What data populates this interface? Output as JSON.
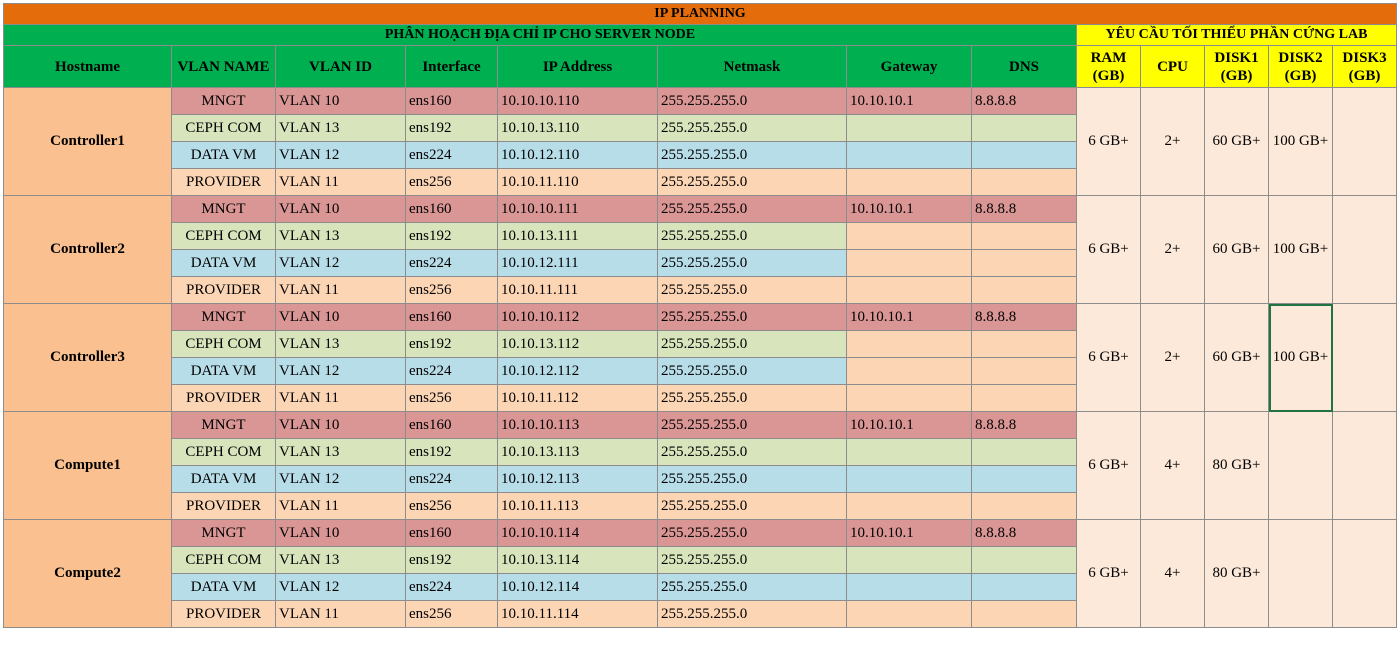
{
  "title": "IP PLANNING",
  "section_ip": "PHÂN HOẠCH ĐỊA CHỈ IP CHO SERVER NODE",
  "section_hw": "YÊU CẦU TỐI THIỂU PHẦN CỨNG LAB",
  "headers": {
    "hostname": "Hostname",
    "vlan_name": "VLAN NAME",
    "vlan_id": "VLAN ID",
    "interface": "Interface",
    "ip": "IP Address",
    "netmask": "Netmask",
    "gateway": "Gateway",
    "dns": "DNS",
    "ram": "RAM (GB)",
    "cpu": "CPU",
    "disk1": "DISK1 (GB)",
    "disk2": "DISK2 (GB)",
    "disk3": "DISK3 (GB)"
  },
  "hosts": [
    {
      "name": "Controller1",
      "ram": "6 GB+",
      "cpu": "2+",
      "disk1": "60 GB+",
      "disk2": "100 GB+",
      "disk3": "",
      "rows": [
        {
          "vlan_name": "MNGT",
          "vlan_id": "VLAN 10",
          "iface": "ens160",
          "ip": "10.10.10.110",
          "mask": "255.255.255.0",
          "gw": "10.10.10.1",
          "dns": "8.8.8.8"
        },
        {
          "vlan_name": "CEPH COM",
          "vlan_id": "VLAN 13",
          "iface": "ens192",
          "ip": "10.10.13.110",
          "mask": "255.255.255.0",
          "gw": "",
          "dns": ""
        },
        {
          "vlan_name": "DATA VM",
          "vlan_id": "VLAN 12",
          "iface": "ens224",
          "ip": "10.10.12.110",
          "mask": "255.255.255.0",
          "gw": "",
          "dns": ""
        },
        {
          "vlan_name": "PROVIDER",
          "vlan_id": "VLAN 11",
          "iface": "ens256",
          "ip": "10.10.11.110",
          "mask": "255.255.255.0",
          "gw": "",
          "dns": ""
        }
      ]
    },
    {
      "name": "Controller2",
      "ram": "6 GB+",
      "cpu": "2+",
      "disk1": "60 GB+",
      "disk2": "100 GB+",
      "disk3": "",
      "rows": [
        {
          "vlan_name": "MNGT",
          "vlan_id": "VLAN 10",
          "iface": "ens160",
          "ip": "10.10.10.111",
          "mask": "255.255.255.0",
          "gw": "10.10.10.1",
          "dns": "8.8.8.8"
        },
        {
          "vlan_name": "CEPH COM",
          "vlan_id": "VLAN 13",
          "iface": "ens192",
          "ip": "10.10.13.111",
          "mask": "255.255.255.0",
          "gw": "",
          "dns": ""
        },
        {
          "vlan_name": "DATA VM",
          "vlan_id": "VLAN 12",
          "iface": "ens224",
          "ip": "10.10.12.111",
          "mask": "255.255.255.0",
          "gw": "",
          "dns": ""
        },
        {
          "vlan_name": "PROVIDER",
          "vlan_id": "VLAN 11",
          "iface": "ens256",
          "ip": "10.10.11.111",
          "mask": "255.255.255.0",
          "gw": "",
          "dns": ""
        }
      ]
    },
    {
      "name": "Controller3",
      "ram": "6 GB+",
      "cpu": "2+",
      "disk1": "60 GB+",
      "disk2": "100 GB+",
      "disk3": "",
      "rows": [
        {
          "vlan_name": "MNGT",
          "vlan_id": "VLAN 10",
          "iface": "ens160",
          "ip": "10.10.10.112",
          "mask": "255.255.255.0",
          "gw": "10.10.10.1",
          "dns": "8.8.8.8"
        },
        {
          "vlan_name": "CEPH COM",
          "vlan_id": "VLAN 13",
          "iface": "ens192",
          "ip": "10.10.13.112",
          "mask": "255.255.255.0",
          "gw": "",
          "dns": ""
        },
        {
          "vlan_name": "DATA VM",
          "vlan_id": "VLAN 12",
          "iface": "ens224",
          "ip": "10.10.12.112",
          "mask": "255.255.255.0",
          "gw": "",
          "dns": ""
        },
        {
          "vlan_name": "PROVIDER",
          "vlan_id": "VLAN 11",
          "iface": "ens256",
          "ip": "10.10.11.112",
          "mask": "255.255.255.0",
          "gw": "",
          "dns": ""
        }
      ]
    },
    {
      "name": "Compute1",
      "ram": "6 GB+",
      "cpu": "4+",
      "disk1": "80 GB+",
      "disk2": "",
      "disk3": "",
      "rows": [
        {
          "vlan_name": "MNGT",
          "vlan_id": "VLAN 10",
          "iface": "ens160",
          "ip": "10.10.10.113",
          "mask": "255.255.255.0",
          "gw": "10.10.10.1",
          "dns": "8.8.8.8"
        },
        {
          "vlan_name": "CEPH COM",
          "vlan_id": "VLAN 13",
          "iface": "ens192",
          "ip": "10.10.13.113",
          "mask": "255.255.255.0",
          "gw": "",
          "dns": ""
        },
        {
          "vlan_name": "DATA VM",
          "vlan_id": "VLAN 12",
          "iface": "ens224",
          "ip": "10.10.12.113",
          "mask": "255.255.255.0",
          "gw": "",
          "dns": ""
        },
        {
          "vlan_name": "PROVIDER",
          "vlan_id": "VLAN 11",
          "iface": "ens256",
          "ip": "10.10.11.113",
          "mask": "255.255.255.0",
          "gw": "",
          "dns": ""
        }
      ]
    },
    {
      "name": "Compute2",
      "ram": "6 GB+",
      "cpu": "4+",
      "disk1": "80 GB+",
      "disk2": "",
      "disk3": "",
      "rows": [
        {
          "vlan_name": "MNGT",
          "vlan_id": "VLAN 10",
          "iface": "ens160",
          "ip": "10.10.10.114",
          "mask": "255.255.255.0",
          "gw": "10.10.10.1",
          "dns": "8.8.8.8"
        },
        {
          "vlan_name": "CEPH COM",
          "vlan_id": "VLAN 13",
          "iface": "ens192",
          "ip": "10.10.13.114",
          "mask": "255.255.255.0",
          "gw": "",
          "dns": ""
        },
        {
          "vlan_name": "DATA VM",
          "vlan_id": "VLAN 12",
          "iface": "ens224",
          "ip": "10.10.12.114",
          "mask": "255.255.255.0",
          "gw": "",
          "dns": ""
        },
        {
          "vlan_name": "PROVIDER",
          "vlan_id": "VLAN 11",
          "iface": "ens256",
          "ip": "10.10.11.114",
          "mask": "255.255.255.0",
          "gw": "",
          "dns": ""
        }
      ]
    }
  ]
}
